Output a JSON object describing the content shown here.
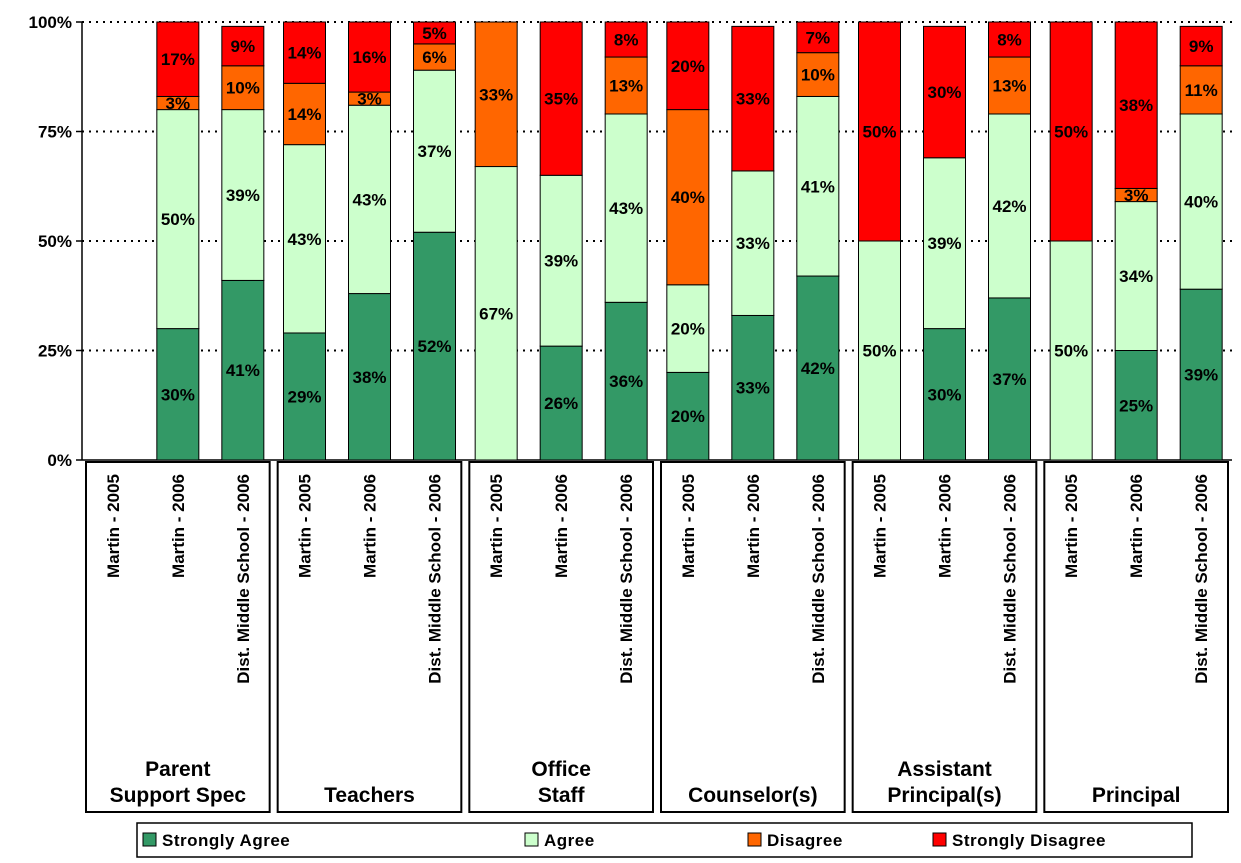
{
  "chart_data": {
    "type": "bar",
    "stacked": true,
    "percent": true,
    "title": "",
    "xlabel": "",
    "ylabel": "",
    "ylim": [
      0,
      100
    ],
    "y_ticks": [
      "0%",
      "25%",
      "50%",
      "75%",
      "100%"
    ],
    "grid": "horizontal dotted",
    "legend_position": "bottom",
    "colors": {
      "Strongly Agree": "#339966",
      "Agree": "#ccffcc",
      "Disagree": "#ff6600",
      "Strongly Disagree": "#ff0000"
    },
    "series_names": [
      "Strongly Agree",
      "Agree",
      "Disagree",
      "Strongly Disagree"
    ],
    "groups": [
      {
        "name": "Parent Support Spec",
        "label_lines": [
          "Parent",
          "Support Spec"
        ],
        "bars": [
          {
            "label": "Martin - 2005",
            "values": [],
            "labels": []
          },
          {
            "label": "Martin - 2006",
            "values": [
              30,
              50,
              3,
              17
            ],
            "labels": [
              "30%",
              "50%",
              "3%",
              "17%"
            ]
          },
          {
            "label": "Dist. Middle School - 2006",
            "values": [
              41,
              39,
              10,
              9
            ],
            "labels": [
              "41%",
              "39%",
              "10%",
              "9%"
            ]
          }
        ]
      },
      {
        "name": "Teachers",
        "label_lines": [
          "Teachers"
        ],
        "bars": [
          {
            "label": "Martin - 2005",
            "values": [
              29,
              43,
              14,
              14
            ],
            "labels": [
              "29%",
              "43%",
              "14%",
              "14%"
            ]
          },
          {
            "label": "Martin - 2006",
            "values": [
              38,
              43,
              3,
              16
            ],
            "labels": [
              "38%",
              "43%",
              "3%",
              "16%"
            ]
          },
          {
            "label": "Dist. Middle School - 2006",
            "values": [
              52,
              37,
              6,
              5
            ],
            "labels": [
              "52%",
              "37%",
              "6%",
              "5%"
            ]
          }
        ]
      },
      {
        "name": "Office Staff",
        "label_lines": [
          "Office",
          "Staff"
        ],
        "bars": [
          {
            "label": "Martin - 2005",
            "values": [
              0,
              67,
              33,
              0
            ],
            "labels": [
              "",
              "67%",
              "33%",
              ""
            ]
          },
          {
            "label": "Martin - 2006",
            "values": [
              26,
              39,
              0,
              35
            ],
            "labels": [
              "26%",
              "39%",
              "",
              "35%"
            ]
          },
          {
            "label": "Dist. Middle School - 2006",
            "values": [
              36,
              43,
              13,
              8
            ],
            "labels": [
              "36%",
              "43%",
              "13%",
              "8%"
            ]
          }
        ]
      },
      {
        "name": "Counselor(s)",
        "label_lines": [
          "Counselor(s)"
        ],
        "bars": [
          {
            "label": "Martin - 2005",
            "values": [
              20,
              20,
              40,
              20
            ],
            "labels": [
              "20%",
              "20%",
              "40%",
              "20%"
            ]
          },
          {
            "label": "Martin - 2006",
            "values": [
              33,
              33,
              0,
              33
            ],
            "labels": [
              "33%",
              "33%",
              "",
              "33%"
            ]
          },
          {
            "label": "Dist. Middle School - 2006",
            "values": [
              42,
              41,
              10,
              7
            ],
            "labels": [
              "42%",
              "41%",
              "10%",
              "7%"
            ]
          }
        ]
      },
      {
        "name": "Assistant Principal(s)",
        "label_lines": [
          "Assistant",
          "Principal(s)"
        ],
        "bars": [
          {
            "label": "Martin - 2005",
            "values": [
              0,
              50,
              0,
              50
            ],
            "labels": [
              "",
              "50%",
              "",
              "50%"
            ]
          },
          {
            "label": "Martin - 2006",
            "values": [
              30,
              39,
              0,
              30
            ],
            "labels": [
              "30%",
              "39%",
              "",
              "30%"
            ]
          },
          {
            "label": "Dist. Middle School - 2006",
            "values": [
              37,
              42,
              13,
              8
            ],
            "labels": [
              "37%",
              "42%",
              "13%",
              "8%"
            ]
          }
        ]
      },
      {
        "name": "Principal",
        "label_lines": [
          "Principal"
        ],
        "bars": [
          {
            "label": "Martin - 2005",
            "values": [
              0,
              50,
              0,
              50
            ],
            "labels": [
              "",
              "50%",
              "",
              "50%"
            ]
          },
          {
            "label": "Martin - 2006",
            "values": [
              25,
              34,
              3,
              38
            ],
            "labels": [
              "25%",
              "34%",
              "3%",
              "38%"
            ]
          },
          {
            "label": "Dist. Middle School - 2006",
            "values": [
              39,
              40,
              11,
              9
            ],
            "labels": [
              "39%",
              "40%",
              "11%",
              "9%"
            ]
          }
        ]
      }
    ]
  }
}
